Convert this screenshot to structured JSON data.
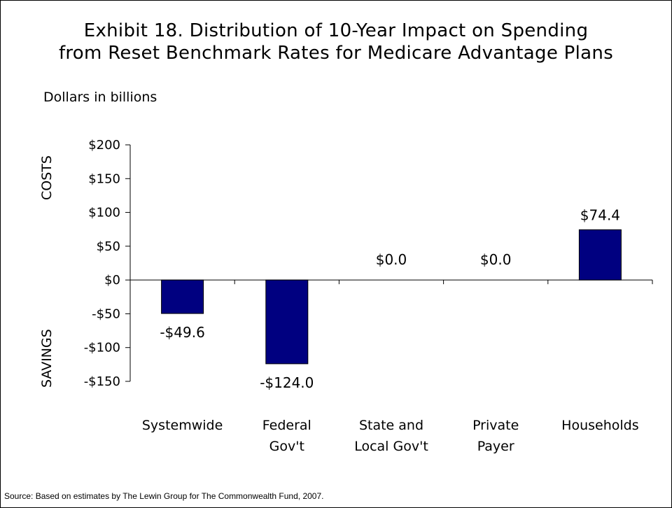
{
  "title": {
    "line1": "Exhibit 18. Distribution of 10-Year Impact on Spending",
    "line2": "from Reset Benchmark Rates for Medicare Advantage Plans"
  },
  "units_label": "Dollars in billions",
  "side_labels": {
    "costs": "COSTS",
    "savings": "SAVINGS"
  },
  "source": "Source: Based on estimates by The Lewin Group for The Commonwealth Fund, 2007.",
  "colors": {
    "bar": "#000080",
    "axis": "#000000"
  },
  "chart_data": {
    "type": "bar",
    "categories": [
      [
        "Systemwide"
      ],
      [
        "Federal",
        "Gov't"
      ],
      [
        "State and",
        "Local Gov't"
      ],
      [
        "Private",
        "Payer"
      ],
      [
        "Households"
      ]
    ],
    "values": [
      -49.6,
      -124.0,
      0.0,
      0.0,
      74.4
    ],
    "data_labels": [
      "-$49.6",
      "-$124.0",
      "$0.0",
      "$0.0",
      "$74.4"
    ],
    "ylim": [
      -150,
      200
    ],
    "yticks": [
      200,
      150,
      100,
      50,
      0,
      -50,
      -100,
      -150
    ],
    "ytick_labels": [
      "$200",
      "$150",
      "$100",
      "$50",
      "$0",
      "-$50",
      "-$100",
      "-$150"
    ],
    "xlabel": "",
    "ylabel": "",
    "grid": false,
    "legend": "none"
  }
}
